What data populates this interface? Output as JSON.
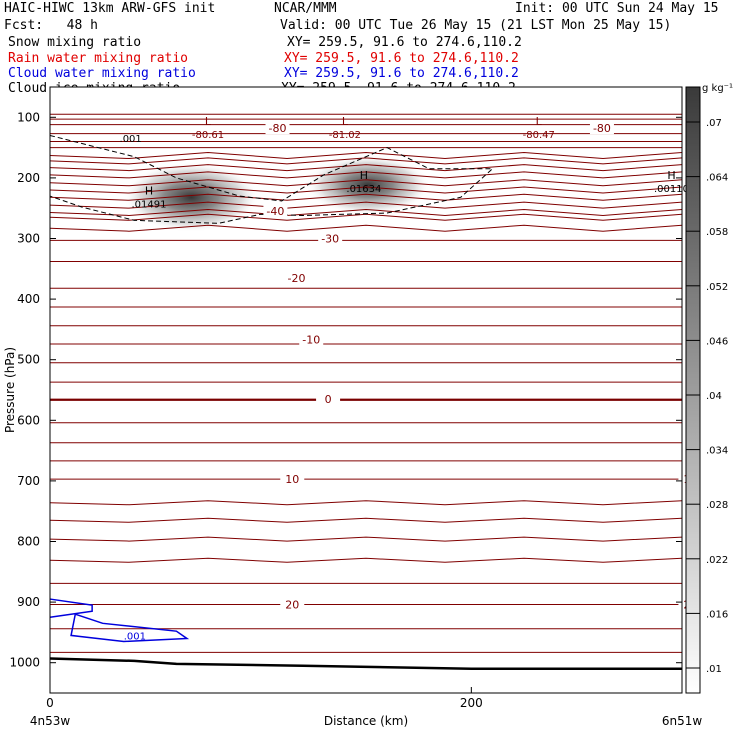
{
  "header": {
    "model": "HAIC-HIWC 13km ARW-GFS init",
    "org": "NCAR/MMM",
    "init": "Init: 00 UTC Sun 24 May 15",
    "fcst": "Fcst:   48 h",
    "valid": "Valid: 00 UTC Tue 26 May 15 (21 LST Mon 25 May 15)"
  },
  "fields": [
    {
      "name": "Snow mixing ratio",
      "xy": "XY= 259.5, 91.6 to 274.6,110.2",
      "color": "#000000"
    },
    {
      "name": "Rain water mixing ratio",
      "xy": "XY= 259.5, 91.6 to 274.6,110.2",
      "color": "#e00000"
    },
    {
      "name": "Cloud water mixing ratio",
      "xy": "XY= 259.5, 91.6 to 274.6,110.2",
      "color": "#0000dd"
    },
    {
      "name": "Cloud ice mixing ratio",
      "xy": "XY= 259.5, 91.6 to 274.6,110.2",
      "color": "#000000"
    }
  ],
  "chart_data": {
    "type": "heatmap",
    "xlabel": "Distance (km)",
    "ylabel": "Pressure (hPa)",
    "xlim": [
      0,
      300
    ],
    "ylim": [
      1050,
      50
    ],
    "x_ticks": [
      "0",
      "200"
    ],
    "x_tick_values": [
      0,
      200
    ],
    "y_ticks": [
      100,
      200,
      300,
      400,
      500,
      600,
      700,
      800,
      900,
      1000
    ],
    "x_endpoint_labels": [
      "4n53w",
      "6n51w"
    ],
    "colorbar": {
      "unit": "g kg⁻¹",
      "ticks": [
        ".01",
        ".016",
        ".022",
        ".028",
        ".034",
        ".04",
        ".046",
        ".052",
        ".058",
        ".064",
        ".07"
      ]
    },
    "contour_labels": [
      {
        "text": "-80",
        "x": 108,
        "p": 118
      },
      {
        "text": "-80",
        "x": 262,
        "p": 118
      },
      {
        "text": "-40",
        "x": 107,
        "p": 255
      },
      {
        "text": "-30",
        "x": 133,
        "p": 300
      },
      {
        "text": "-20",
        "x": 117,
        "p": 365
      },
      {
        "text": "-10",
        "x": 124,
        "p": 467
      },
      {
        "text": "0",
        "x": 132,
        "p": 565
      },
      {
        "text": "10",
        "x": 115,
        "p": 697
      },
      {
        "text": "10",
        "x": 304,
        "p": 697
      },
      {
        "text": "20",
        "x": 115,
        "p": 904
      },
      {
        "text": "20",
        "x": 304,
        "p": 904
      }
    ],
    "extrema": [
      {
        "kind": "L",
        "value": "-80.61",
        "x": 75,
        "p": 118
      },
      {
        "kind": "L",
        "value": "-81.02",
        "x": 140,
        "p": 118
      },
      {
        "kind": "L",
        "value": "-80.47",
        "x": 232,
        "p": 118
      },
      {
        "kind": "H",
        "value": ".01491",
        "x": 47,
        "p": 232
      },
      {
        "kind": "H",
        "value": ".01634",
        "x": 149,
        "p": 207
      },
      {
        "kind": "H",
        "value": ".00110",
        "x": 295,
        "p": 207
      }
    ],
    "snow_label": ".001",
    "cloud_water_label": ".001"
  }
}
